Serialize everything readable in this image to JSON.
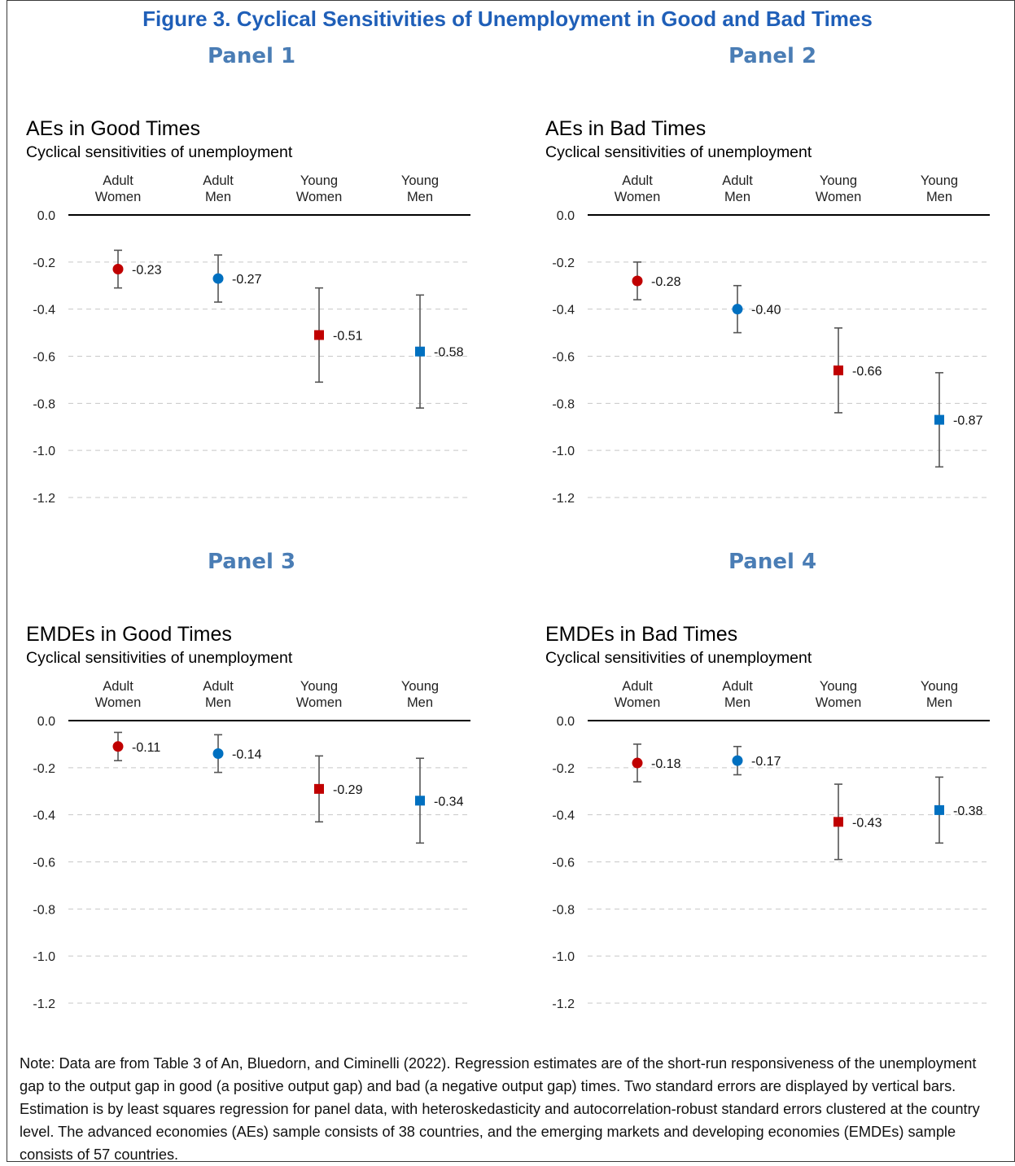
{
  "title": "Figure 3. Cyclical Sensitivities of Unemployment in Good and Bad Times",
  "panel_labels": [
    "Panel 1",
    "Panel 2",
    "Panel 3",
    "Panel 4"
  ],
  "colors": {
    "women": "#c00000",
    "men": "#0070c0",
    "errorbar": "#555555",
    "title": "#1f5fb8",
    "panel_label": "#4a7db5"
  },
  "chart_data": [
    {
      "type": "scatter",
      "title": "AEs in Good Times",
      "subtitle": "Cyclical sensitivities of unemployment",
      "categories": [
        "Adult Women",
        "Adult Men",
        "Young Women",
        "Young Men"
      ],
      "category_lines": [
        [
          "Adult",
          "Women"
        ],
        [
          "Adult",
          "Men"
        ],
        [
          "Young",
          "Women"
        ],
        [
          "Young",
          "Men"
        ]
      ],
      "values": [
        -0.23,
        -0.27,
        -0.51,
        -0.58
      ],
      "value_labels": [
        "-0.23",
        "-0.27",
        "-0.51",
        "-0.58"
      ],
      "error_low": [
        -0.31,
        -0.37,
        -0.71,
        -0.82
      ],
      "error_high": [
        -0.15,
        -0.17,
        -0.31,
        -0.34
      ],
      "markers": [
        "circle",
        "circle",
        "square",
        "square"
      ],
      "ylim": [
        -1.2,
        0.0
      ],
      "yticks": [
        "0.0",
        "-0.2",
        "-0.4",
        "-0.6",
        "-0.8",
        "-1.0",
        "-1.2"
      ],
      "grid": true
    },
    {
      "type": "scatter",
      "title": "AEs in Bad Times",
      "subtitle": "Cyclical sensitivities of unemployment",
      "categories": [
        "Adult Women",
        "Adult Men",
        "Young Women",
        "Young Men"
      ],
      "category_lines": [
        [
          "Adult",
          "Women"
        ],
        [
          "Adult",
          "Men"
        ],
        [
          "Young",
          "Women"
        ],
        [
          "Young",
          "Men"
        ]
      ],
      "values": [
        -0.28,
        -0.4,
        -0.66,
        -0.87
      ],
      "value_labels": [
        "-0.28",
        "-0.40",
        "-0.66",
        "-0.87"
      ],
      "error_low": [
        -0.36,
        -0.5,
        -0.84,
        -1.07
      ],
      "error_high": [
        -0.2,
        -0.3,
        -0.48,
        -0.67
      ],
      "markers": [
        "circle",
        "circle",
        "square",
        "square"
      ],
      "ylim": [
        -1.2,
        0.0
      ],
      "yticks": [
        "0.0",
        "-0.2",
        "-0.4",
        "-0.6",
        "-0.8",
        "-1.0",
        "-1.2"
      ],
      "grid": true
    },
    {
      "type": "scatter",
      "title": "EMDEs in Good Times",
      "subtitle": "Cyclical sensitivities of unemployment",
      "categories": [
        "Adult Women",
        "Adult Men",
        "Young Women",
        "Young Men"
      ],
      "category_lines": [
        [
          "Adult",
          "Women"
        ],
        [
          "Adult",
          "Men"
        ],
        [
          "Young",
          "Women"
        ],
        [
          "Young",
          "Men"
        ]
      ],
      "values": [
        -0.11,
        -0.14,
        -0.29,
        -0.34
      ],
      "value_labels": [
        "-0.11",
        "-0.14",
        "-0.29",
        "-0.34"
      ],
      "error_low": [
        -0.17,
        -0.22,
        -0.43,
        -0.52
      ],
      "error_high": [
        -0.05,
        -0.06,
        -0.15,
        -0.16
      ],
      "markers": [
        "circle",
        "circle",
        "square",
        "square"
      ],
      "ylim": [
        -1.2,
        0.0
      ],
      "yticks": [
        "0.0",
        "-0.2",
        "-0.4",
        "-0.6",
        "-0.8",
        "-1.0",
        "-1.2"
      ],
      "grid": true
    },
    {
      "type": "scatter",
      "title": "EMDEs in Bad Times",
      "subtitle": "Cyclical sensitivities of unemployment",
      "categories": [
        "Adult Women",
        "Adult Men",
        "Young Women",
        "Young Men"
      ],
      "category_lines": [
        [
          "Adult",
          "Women"
        ],
        [
          "Adult",
          "Men"
        ],
        [
          "Young",
          "Women"
        ],
        [
          "Young",
          "Men"
        ]
      ],
      "values": [
        -0.18,
        -0.17,
        -0.43,
        -0.38
      ],
      "value_labels": [
        "-0.18",
        "-0.17",
        "-0.43",
        "-0.38"
      ],
      "error_low": [
        -0.26,
        -0.23,
        -0.59,
        -0.52
      ],
      "error_high": [
        -0.1,
        -0.11,
        -0.27,
        -0.24
      ],
      "markers": [
        "circle",
        "circle",
        "square",
        "square"
      ],
      "ylim": [
        -1.2,
        0.0
      ],
      "yticks": [
        "0.0",
        "-0.2",
        "-0.4",
        "-0.6",
        "-0.8",
        "-1.0",
        "-1.2"
      ],
      "grid": true
    }
  ],
  "note": "Note: Data are from Table 3 of An, Bluedorn, and Ciminelli (2022). Regression estimates are of the short-run responsiveness of the unemployment gap to the output gap in good (a positive output gap) and bad (a negative output gap) times. Two standard errors are displayed by vertical bars. Estimation is by least squares regression for panel data, with heteroskedasticity and autocorrelation-robust standard errors clustered at the country level. The advanced economies (AEs) sample consists of 38 countries, and the emerging markets and developing economies (EMDEs) sample consists of 57 countries."
}
